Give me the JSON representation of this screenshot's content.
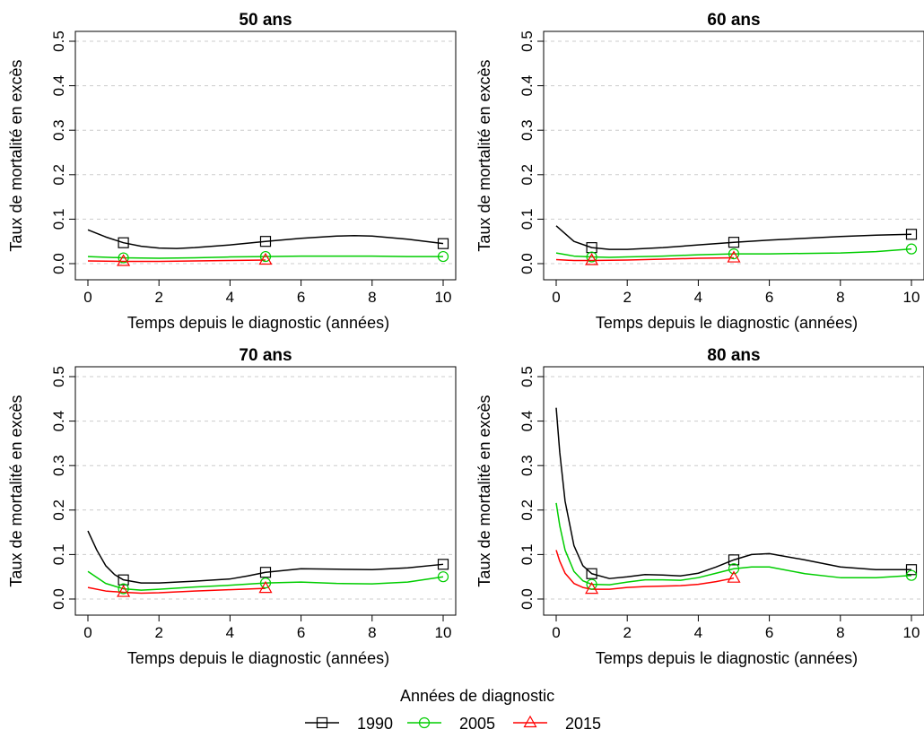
{
  "chart_data": [
    {
      "type": "line",
      "title": "50 ans",
      "xlabel": "Temps depuis le diagnostic (années)",
      "ylabel": "Taux de mortalité en excès",
      "xlim": [
        0,
        10
      ],
      "ylim": [
        0,
        0.5
      ],
      "xticks": [
        "0",
        "2",
        "4",
        "6",
        "8",
        "10"
      ],
      "yticks": [
        "0.0",
        "0.1",
        "0.2",
        "0.3",
        "0.4",
        "0.5"
      ],
      "grid": "horizontal dashed",
      "series": [
        {
          "name": "1990",
          "x": [
            0,
            0.5,
            1,
            1.5,
            2,
            2.5,
            3,
            4,
            5,
            6,
            7,
            7.5,
            8,
            9,
            10
          ],
          "y": [
            0.076,
            0.06,
            0.047,
            0.039,
            0.035,
            0.034,
            0.036,
            0.042,
            0.05,
            0.057,
            0.062,
            0.063,
            0.062,
            0.055,
            0.045
          ],
          "markers": {
            "x": [
              1,
              5,
              10
            ],
            "y": [
              0.047,
              0.05,
              0.045
            ]
          }
        },
        {
          "name": "2005",
          "x": [
            0,
            1,
            2,
            3,
            4,
            5,
            6,
            7,
            8,
            9,
            10
          ],
          "y": [
            0.016,
            0.013,
            0.012,
            0.013,
            0.015,
            0.016,
            0.017,
            0.017,
            0.017,
            0.016,
            0.016
          ],
          "markers": {
            "x": [
              1,
              5,
              10
            ],
            "y": [
              0.013,
              0.016,
              0.016
            ]
          }
        },
        {
          "name": "2015",
          "x": [
            0,
            1,
            2,
            3,
            4,
            5
          ],
          "y": [
            0.006,
            0.005,
            0.005,
            0.006,
            0.007,
            0.008
          ],
          "markers": {
            "x": [
              1,
              5
            ],
            "y": [
              0.005,
              0.008
            ]
          }
        }
      ]
    },
    {
      "type": "line",
      "title": "60 ans",
      "xlabel": "Temps depuis le diagnostic (années)",
      "ylabel": "Taux de mortalité en excès",
      "xlim": [
        0,
        10
      ],
      "ylim": [
        0,
        0.5
      ],
      "xticks": [
        "0",
        "2",
        "4",
        "6",
        "8",
        "10"
      ],
      "yticks": [
        "0.0",
        "0.1",
        "0.2",
        "0.3",
        "0.4",
        "0.5"
      ],
      "grid": "horizontal dashed",
      "series": [
        {
          "name": "1990",
          "x": [
            0,
            0.5,
            1,
            1.5,
            2,
            3,
            4,
            5,
            6,
            7,
            8,
            9,
            10
          ],
          "y": [
            0.085,
            0.05,
            0.036,
            0.032,
            0.032,
            0.036,
            0.042,
            0.048,
            0.053,
            0.057,
            0.061,
            0.064,
            0.066
          ],
          "markers": {
            "x": [
              1,
              5,
              10
            ],
            "y": [
              0.036,
              0.048,
              0.066
            ]
          }
        },
        {
          "name": "2005",
          "x": [
            0,
            0.5,
            1,
            1.5,
            2,
            3,
            4,
            5,
            6,
            7,
            8,
            9,
            10
          ],
          "y": [
            0.024,
            0.017,
            0.015,
            0.014,
            0.015,
            0.017,
            0.02,
            0.022,
            0.022,
            0.023,
            0.024,
            0.027,
            0.033
          ],
          "markers": {
            "x": [
              1,
              5,
              10
            ],
            "y": [
              0.015,
              0.022,
              0.033
            ]
          }
        },
        {
          "name": "2015",
          "x": [
            0,
            0.5,
            1,
            2,
            3,
            4,
            5
          ],
          "y": [
            0.009,
            0.007,
            0.007,
            0.008,
            0.01,
            0.012,
            0.013
          ],
          "markers": {
            "x": [
              1,
              5
            ],
            "y": [
              0.007,
              0.013
            ]
          }
        }
      ]
    },
    {
      "type": "line",
      "title": "70 ans",
      "xlabel": "Temps depuis le diagnostic (années)",
      "ylabel": "Taux de mortalité en excès",
      "xlim": [
        0,
        10
      ],
      "ylim": [
        0,
        0.5
      ],
      "xticks": [
        "0",
        "2",
        "4",
        "6",
        "8",
        "10"
      ],
      "yticks": [
        "0.0",
        "0.1",
        "0.2",
        "0.3",
        "0.4",
        "0.5"
      ],
      "grid": "horizontal dashed",
      "series": [
        {
          "name": "1990",
          "x": [
            0,
            0.25,
            0.5,
            0.75,
            1,
            1.5,
            2,
            3,
            4,
            4.5,
            5,
            6,
            7,
            8,
            9,
            10
          ],
          "y": [
            0.153,
            0.11,
            0.075,
            0.055,
            0.043,
            0.036,
            0.036,
            0.04,
            0.045,
            0.052,
            0.06,
            0.068,
            0.067,
            0.066,
            0.07,
            0.078
          ],
          "markers": {
            "x": [
              1,
              5,
              10
            ],
            "y": [
              0.043,
              0.06,
              0.078
            ]
          }
        },
        {
          "name": "2005",
          "x": [
            0,
            0.5,
            1,
            1.5,
            2,
            3,
            4,
            5,
            6,
            7,
            8,
            9,
            10
          ],
          "y": [
            0.062,
            0.035,
            0.023,
            0.02,
            0.022,
            0.027,
            0.031,
            0.036,
            0.038,
            0.035,
            0.034,
            0.038,
            0.05
          ],
          "markers": {
            "x": [
              1,
              5,
              10
            ],
            "y": [
              0.023,
              0.036,
              0.05
            ]
          }
        },
        {
          "name": "2015",
          "x": [
            0,
            0.5,
            1,
            1.5,
            2,
            3,
            4,
            5
          ],
          "y": [
            0.026,
            0.018,
            0.015,
            0.013,
            0.014,
            0.018,
            0.021,
            0.024
          ],
          "markers": {
            "x": [
              1,
              5
            ],
            "y": [
              0.015,
              0.024
            ]
          }
        }
      ]
    },
    {
      "type": "line",
      "title": "80 ans",
      "xlabel": "Temps depuis le diagnostic (années)",
      "ylabel": "Taux de mortalité en excès",
      "xlim": [
        0,
        10
      ],
      "ylim": [
        0,
        0.5
      ],
      "xticks": [
        "0",
        "2",
        "4",
        "6",
        "8",
        "10"
      ],
      "yticks": [
        "0.0",
        "0.1",
        "0.2",
        "0.3",
        "0.4",
        "0.5"
      ],
      "grid": "horizontal dashed",
      "series": [
        {
          "name": "1990",
          "x": [
            0,
            0.1,
            0.25,
            0.5,
            0.75,
            1,
            1.5,
            2,
            2.5,
            3,
            3.5,
            4,
            4.5,
            5,
            5.5,
            6,
            7,
            8,
            9,
            10
          ],
          "y": [
            0.43,
            0.33,
            0.22,
            0.12,
            0.075,
            0.057,
            0.046,
            0.05,
            0.055,
            0.054,
            0.052,
            0.058,
            0.072,
            0.088,
            0.1,
            0.102,
            0.088,
            0.072,
            0.066,
            0.066
          ],
          "markers": {
            "x": [
              1,
              5,
              10
            ],
            "y": [
              0.057,
              0.088,
              0.066
            ]
          }
        },
        {
          "name": "2005",
          "x": [
            0,
            0.1,
            0.25,
            0.5,
            0.75,
            1,
            1.5,
            2,
            2.5,
            3,
            3.5,
            4,
            4.5,
            5,
            5.5,
            6,
            7,
            8,
            9,
            10
          ],
          "y": [
            0.216,
            0.165,
            0.11,
            0.062,
            0.041,
            0.033,
            0.032,
            0.038,
            0.043,
            0.043,
            0.042,
            0.048,
            0.058,
            0.068,
            0.072,
            0.072,
            0.057,
            0.048,
            0.048,
            0.053
          ],
          "markers": {
            "x": [
              1,
              5,
              10
            ],
            "y": [
              0.033,
              0.068,
              0.053
            ]
          }
        },
        {
          "name": "2015",
          "x": [
            0,
            0.1,
            0.25,
            0.5,
            0.75,
            1,
            1.5,
            2,
            2.5,
            3,
            3.5,
            4,
            4.5,
            5
          ],
          "y": [
            0.11,
            0.085,
            0.058,
            0.035,
            0.026,
            0.022,
            0.022,
            0.026,
            0.028,
            0.029,
            0.03,
            0.033,
            0.039,
            0.047
          ],
          "markers": {
            "x": [
              1,
              5
            ],
            "y": [
              0.022,
              0.047
            ]
          }
        }
      ]
    }
  ],
  "legend": {
    "title": "Années de diagnostic",
    "items": [
      {
        "label": "1990",
        "color": "#000000",
        "marker": "square"
      },
      {
        "label": "2005",
        "color": "#00cd00",
        "marker": "circle"
      },
      {
        "label": "2015",
        "color": "#ff0000",
        "marker": "triangle"
      }
    ]
  }
}
